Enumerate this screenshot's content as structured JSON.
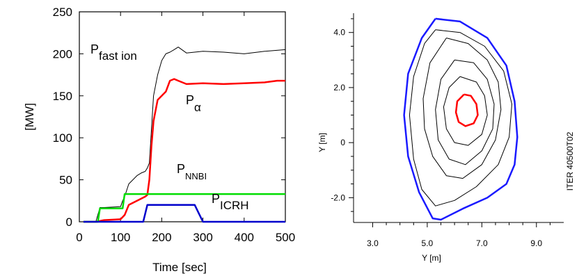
{
  "chart_data": [
    {
      "type": "line",
      "title": "",
      "xlabel": "Time [sec]",
      "ylabel": "[MW]",
      "xlim": [
        0,
        500
      ],
      "ylim": [
        0,
        250
      ],
      "xticks": [
        "0",
        "100",
        "200",
        "300",
        "400",
        "500"
      ],
      "yticks": [
        "0",
        "50",
        "100",
        "150",
        "200",
        "250"
      ],
      "grid": false,
      "annotations": {
        "fast_ion": {
          "main": "P",
          "sub": "fast ion"
        },
        "alpha": {
          "main": "P",
          "sub": "α"
        },
        "nnbi": {
          "main": "P",
          "sub": "NNBI"
        },
        "icrh": {
          "main": "P",
          "sub": "ICRH"
        }
      },
      "series": [
        {
          "key": "fast_ion",
          "color": "#000000",
          "x": [
            10,
            40,
            50,
            60,
            100,
            105,
            110,
            120,
            140,
            150,
            160,
            165,
            170,
            175,
            180,
            190,
            200,
            210,
            220,
            230,
            240,
            260,
            300,
            350,
            400,
            450,
            500
          ],
          "y": [
            0,
            0,
            17,
            17,
            18,
            25,
            30,
            45,
            55,
            58,
            60,
            64,
            70,
            110,
            150,
            175,
            192,
            200,
            202,
            205,
            208,
            201,
            203,
            202,
            200,
            203,
            205
          ]
        },
        {
          "key": "alpha",
          "color": "#ff0000",
          "x": [
            10,
            40,
            60,
            100,
            110,
            120,
            140,
            160,
            165,
            170,
            175,
            180,
            190,
            200,
            210,
            220,
            230,
            240,
            260,
            300,
            350,
            400,
            450,
            480,
            500
          ],
          "y": [
            0,
            0,
            2,
            3,
            8,
            20,
            25,
            30,
            32,
            50,
            90,
            120,
            145,
            150,
            155,
            168,
            170,
            168,
            164,
            165,
            164,
            165,
            166,
            168,
            168
          ]
        },
        {
          "key": "nnbi",
          "color": "#00dd00",
          "x": [
            10,
            45,
            50,
            105,
            110,
            500
          ],
          "y": [
            0,
            0,
            16,
            16,
            33,
            33
          ]
        },
        {
          "key": "icrh",
          "color": "#0000cc",
          "x": [
            10,
            155,
            165,
            280,
            290,
            300,
            500
          ],
          "y": [
            0,
            0,
            20,
            20,
            10,
            0,
            0
          ]
        }
      ]
    },
    {
      "type": "line",
      "title": "",
      "xlabel": "Y [m]",
      "ylabel": "Y [m]",
      "xlim": [
        2.3,
        10.0
      ],
      "ylim": [
        -2.9,
        4.7
      ],
      "xticks": [
        "3.0",
        "5.0",
        "7.0",
        "9.0"
      ],
      "yticks": [
        "-2.0",
        "0",
        "2.0",
        "4.0"
      ],
      "grid": false,
      "side_label": "ITER 40500T02",
      "series": [
        {
          "key": "separatrix",
          "color": "#1a1aff",
          "x": [
            5.3,
            6.2,
            7.2,
            7.9,
            8.2,
            8.3,
            8.2,
            7.9,
            7.2,
            6.3,
            5.5,
            5.2,
            4.7,
            4.3,
            4.15,
            4.3,
            4.8,
            5.3
          ],
          "y": [
            4.5,
            4.4,
            3.8,
            2.8,
            1.5,
            0.2,
            -0.8,
            -1.5,
            -2.0,
            -2.4,
            -2.8,
            -2.75,
            -1.8,
            -0.5,
            1.0,
            2.5,
            3.8,
            4.5
          ]
        },
        {
          "key": "flux_1",
          "color": "#000000",
          "x": [
            5.3,
            6.2,
            7.1,
            7.8,
            8.1,
            8.0,
            7.6,
            6.8,
            6.0,
            5.3,
            4.8,
            4.5,
            4.35,
            4.5,
            4.9,
            5.3
          ],
          "y": [
            4.1,
            4.0,
            3.5,
            2.6,
            1.4,
            0.2,
            -0.8,
            -1.6,
            -2.1,
            -2.3,
            -1.7,
            -0.6,
            1.0,
            2.4,
            3.6,
            4.1
          ]
        },
        {
          "key": "flux_2",
          "color": "#000000",
          "x": [
            5.7,
            6.5,
            7.2,
            7.6,
            7.7,
            7.5,
            7.0,
            6.3,
            5.7,
            5.2,
            4.9,
            4.85,
            5.1,
            5.7
          ],
          "y": [
            3.8,
            3.6,
            3.0,
            2.2,
            1.2,
            0.1,
            -0.8,
            -1.3,
            -1.2,
            -0.5,
            0.5,
            1.6,
            2.9,
            3.8
          ]
        },
        {
          "key": "flux_3",
          "color": "#000000",
          "x": [
            6.0,
            6.7,
            7.2,
            7.45,
            7.4,
            7.0,
            6.4,
            5.8,
            5.4,
            5.3,
            5.5,
            6.0
          ],
          "y": [
            3.0,
            2.9,
            2.3,
            1.4,
            0.5,
            -0.3,
            -0.8,
            -0.6,
            0.1,
            1.2,
            2.3,
            3.0
          ]
        },
        {
          "key": "flux_4",
          "color": "#000000",
          "x": [
            6.2,
            6.8,
            7.1,
            7.2,
            7.0,
            6.5,
            6.0,
            5.7,
            5.6,
            5.8,
            6.2
          ],
          "y": [
            2.4,
            2.2,
            1.7,
            1.0,
            0.3,
            -0.1,
            0.0,
            0.5,
            1.3,
            2.0,
            2.4
          ]
        },
        {
          "key": "magnetic_axis",
          "color": "#ff0000",
          "x": [
            6.35,
            6.6,
            6.8,
            6.85,
            6.7,
            6.4,
            6.15,
            6.05,
            6.1,
            6.35
          ],
          "y": [
            1.75,
            1.7,
            1.4,
            1.0,
            0.7,
            0.6,
            0.75,
            1.1,
            1.5,
            1.75
          ]
        }
      ]
    }
  ]
}
